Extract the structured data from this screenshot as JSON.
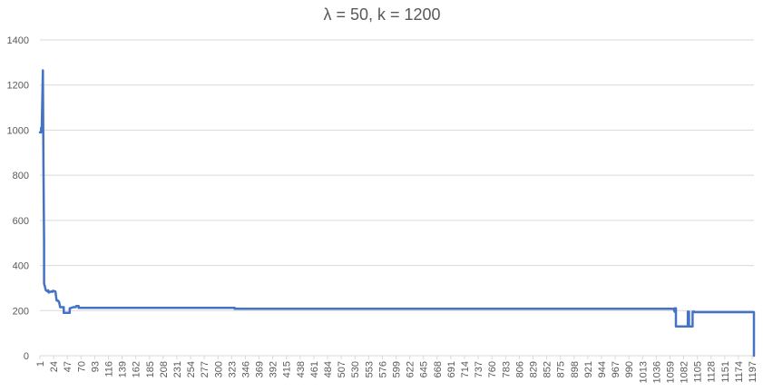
{
  "chart_data": {
    "type": "line",
    "title": "λ = 50, k = 1200",
    "xlabel": "",
    "ylabel": "",
    "ylim": [
      0,
      1400
    ],
    "y_ticks": [
      0,
      200,
      400,
      600,
      800,
      1000,
      1200,
      1400
    ],
    "x_domain": [
      1,
      1200
    ],
    "x_ticks": [
      1,
      24,
      47,
      70,
      93,
      116,
      139,
      162,
      185,
      208,
      231,
      254,
      277,
      300,
      323,
      346,
      369,
      392,
      415,
      438,
      461,
      484,
      507,
      530,
      553,
      576,
      599,
      622,
      645,
      668,
      691,
      714,
      737,
      760,
      783,
      806,
      829,
      852,
      875,
      898,
      921,
      944,
      967,
      990,
      1013,
      1036,
      1059,
      1082,
      1105,
      1128,
      1151,
      1174,
      1197
    ],
    "grid": true,
    "legend": "none",
    "colors": {
      "line": "#4472C4",
      "grid": "#d9d9d9",
      "text": "#595959"
    },
    "series": [
      {
        "x": [
          1,
          3,
          3,
          4,
          5,
          6,
          6,
          7,
          8,
          8,
          11,
          14,
          15,
          16,
          20,
          22,
          23,
          26,
          27,
          29,
          31,
          32,
          33,
          35,
          39,
          41,
          41,
          49,
          51,
          51,
          57,
          61,
          62,
          66,
          66,
          328,
          328,
          1065,
          1067,
          1067,
          1069,
          1069,
          1089,
          1089,
          1091,
          1091,
          1097,
          1097,
          1099,
          1100,
          1100,
          1200,
          1200
        ],
        "y": [
          990,
          990,
          1010,
          1000,
          1130,
          1265,
          1250,
          820,
          500,
          320,
          290,
          285,
          290,
          280,
          285,
          283,
          288,
          285,
          285,
          245,
          245,
          240,
          240,
          215,
          215,
          215,
          190,
          190,
          190,
          210,
          215,
          215,
          220,
          220,
          212,
          212,
          208,
          208,
          195,
          210,
          210,
          130,
          130,
          195,
          195,
          130,
          130,
          195,
          195,
          195,
          193,
          193,
          0
        ]
      }
    ]
  }
}
